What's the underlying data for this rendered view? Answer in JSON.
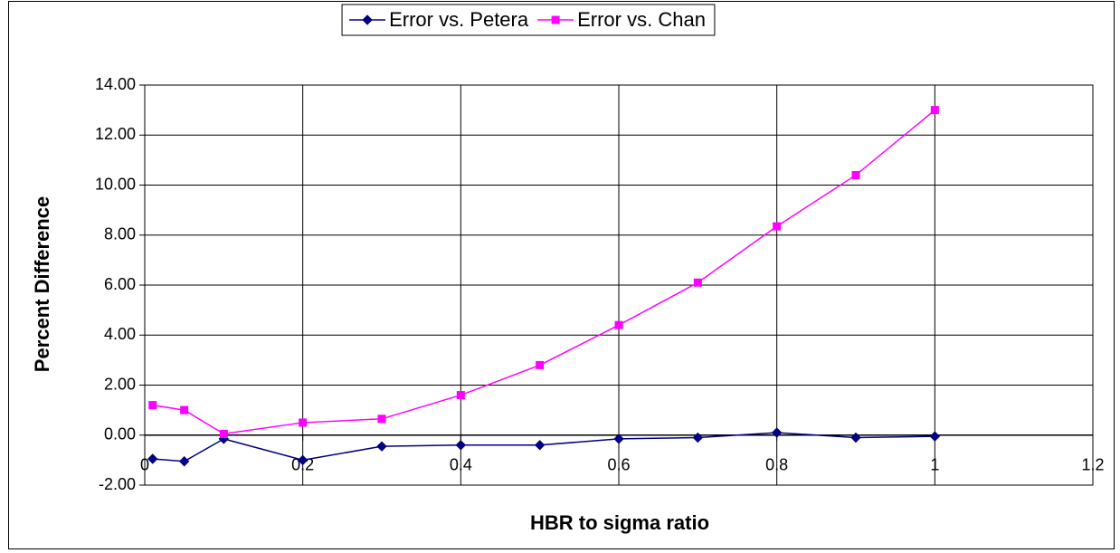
{
  "chart_data": {
    "type": "line",
    "xlabel": "HBR to sigma ratio",
    "ylabel": "Percent Difference",
    "x": [
      0.01,
      0.05,
      0.1,
      0.2,
      0.3,
      0.4,
      0.5,
      0.6,
      0.7,
      0.8,
      0.9,
      1
    ],
    "series": [
      {
        "name": "Error vs. Petera",
        "color": "#000080",
        "marker": "diamond",
        "values": [
          -0.95,
          -1.05,
          -0.15,
          -1.0,
          -0.45,
          -0.4,
          -0.4,
          -0.15,
          -0.1,
          0.1,
          -0.1,
          -0.05
        ]
      },
      {
        "name": "Error vs. Chan",
        "color": "#ff00ff",
        "marker": "square",
        "values": [
          1.2,
          1.0,
          0.05,
          0.5,
          0.65,
          1.6,
          2.8,
          4.4,
          6.1,
          8.35,
          10.4,
          13.0
        ]
      }
    ],
    "xlim": [
      0,
      1.2
    ],
    "xticks": [
      0,
      0.2,
      0.4,
      0.6,
      0.8,
      1,
      1.2
    ],
    "ylim": [
      -2,
      14
    ],
    "yticks": [
      {
        "value": -2,
        "label": "-2.00"
      },
      {
        "value": 0,
        "label": "0.00"
      },
      {
        "value": 2,
        "label": "2.00"
      },
      {
        "value": 4,
        "label": "4.00"
      },
      {
        "value": 6,
        "label": "6.00"
      },
      {
        "value": 8,
        "label": "8.00"
      },
      {
        "value": 10,
        "label": "10.00"
      },
      {
        "value": 12,
        "label": "12.00"
      },
      {
        "value": 14,
        "label": "14.00"
      }
    ],
    "grid": true,
    "legend": "top"
  }
}
